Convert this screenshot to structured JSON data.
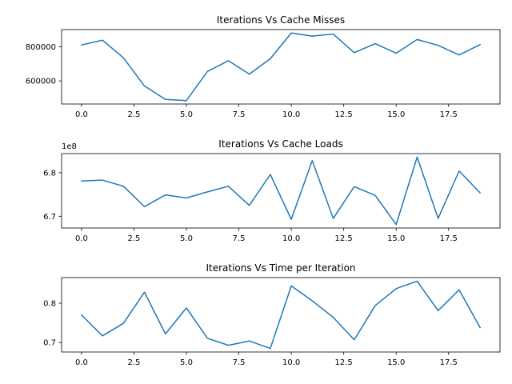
{
  "chart_data": [
    {
      "type": "line",
      "title": "Iterations Vs Cache Misses",
      "xlabel": "",
      "ylabel": "",
      "offset_label": "",
      "x": [
        0,
        1,
        2,
        3,
        4,
        5,
        6,
        7,
        8,
        9,
        10,
        11,
        12,
        13,
        14,
        15,
        16,
        17,
        18,
        19
      ],
      "series": [
        {
          "values": [
            810000,
            838000,
            735000,
            570000,
            492000,
            485000,
            655000,
            718000,
            640000,
            730000,
            880000,
            862000,
            874000,
            765000,
            818000,
            762000,
            842000,
            808000,
            752000,
            812000
          ]
        }
      ],
      "xlim": [
        -0.95,
        19.95
      ],
      "ylim": [
        465000,
        900000
      ],
      "xticks": [
        0,
        2.5,
        5,
        7.5,
        10,
        12.5,
        15,
        17.5
      ],
      "xtick_labels": [
        "0.0",
        "2.5",
        "5.0",
        "7.5",
        "10.0",
        "12.5",
        "15.0",
        "17.5"
      ],
      "yticks": [
        600000,
        800000
      ],
      "ytick_labels": [
        "600000",
        "800000"
      ],
      "grid": false,
      "color": "#1f77b4"
    },
    {
      "type": "line",
      "title": "Iterations Vs Cache Loads",
      "xlabel": "",
      "ylabel": "",
      "offset_label": "1e8",
      "x": [
        0,
        1,
        2,
        3,
        4,
        5,
        6,
        7,
        8,
        9,
        10,
        11,
        12,
        13,
        14,
        15,
        16,
        17,
        18,
        19
      ],
      "series": [
        {
          "values": [
            678100000,
            678300000,
            676900000,
            672200000,
            674900000,
            674200000,
            675600000,
            676900000,
            672500000,
            679600000,
            669300000,
            682800000,
            669500000,
            676800000,
            674800000,
            668100000,
            683600000,
            669500000,
            680400000,
            675400000
          ]
        }
      ],
      "xlim": [
        -0.95,
        19.95
      ],
      "ylim": [
        667300000,
        684400000
      ],
      "xticks": [
        0,
        2.5,
        5,
        7.5,
        10,
        12.5,
        15,
        17.5
      ],
      "xtick_labels": [
        "0.0",
        "2.5",
        "5.0",
        "7.5",
        "10.0",
        "12.5",
        "15.0",
        "17.5"
      ],
      "yticks": [
        670000000,
        680000000
      ],
      "ytick_labels": [
        "6.7",
        "6.8"
      ],
      "grid": false,
      "color": "#1f77b4"
    },
    {
      "type": "line",
      "title": "Iterations Vs Time per Iteration",
      "xlabel": "",
      "ylabel": "",
      "offset_label": "",
      "x": [
        0,
        1,
        2,
        3,
        4,
        5,
        6,
        7,
        8,
        9,
        10,
        11,
        12,
        13,
        14,
        15,
        16,
        17,
        18,
        19
      ],
      "series": [
        {
          "values": [
            0.77,
            0.717,
            0.749,
            0.828,
            0.722,
            0.788,
            0.711,
            0.693,
            0.704,
            0.685,
            0.844,
            0.806,
            0.764,
            0.707,
            0.794,
            0.837,
            0.856,
            0.781,
            0.834,
            0.738
          ]
        }
      ],
      "xlim": [
        -0.95,
        19.95
      ],
      "ylim": [
        0.676,
        0.865
      ],
      "xticks": [
        0,
        2.5,
        5,
        7.5,
        10,
        12.5,
        15,
        17.5
      ],
      "xtick_labels": [
        "0.0",
        "2.5",
        "5.0",
        "7.5",
        "10.0",
        "12.5",
        "15.0",
        "17.5"
      ],
      "yticks": [
        0.7,
        0.8
      ],
      "ytick_labels": [
        "0.7",
        "0.8"
      ],
      "grid": false,
      "color": "#1f77b4"
    }
  ]
}
